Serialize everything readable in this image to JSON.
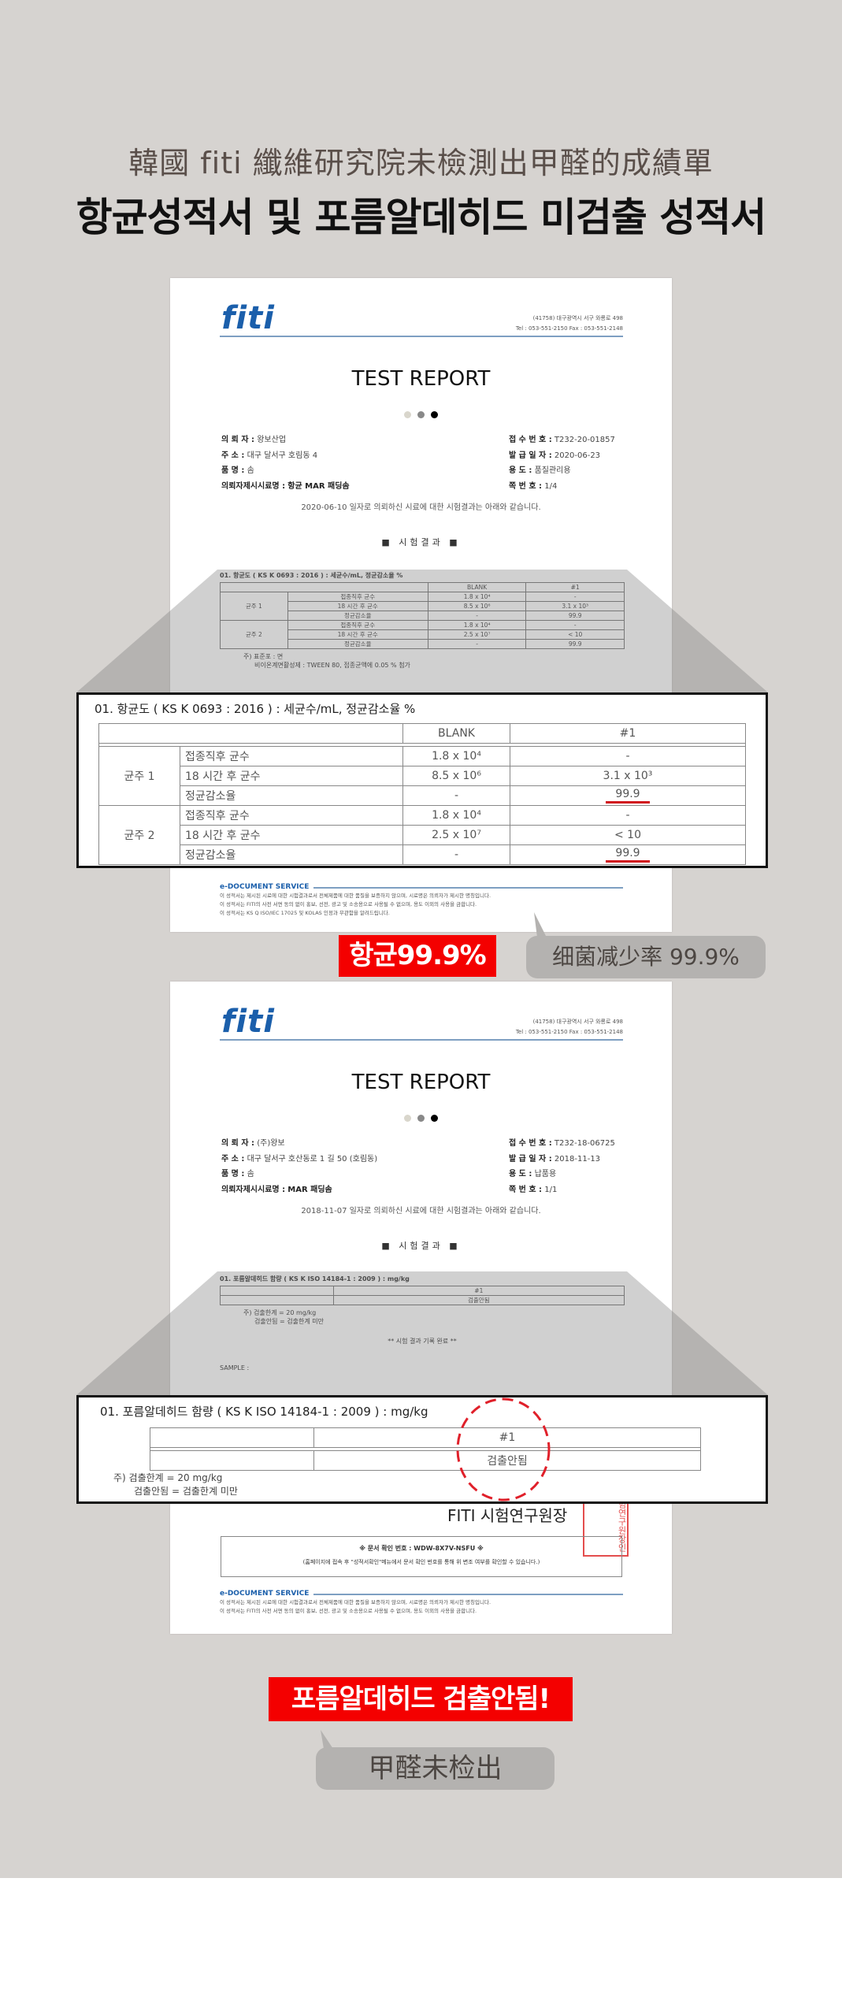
{
  "header": {
    "title_cn": "韓國 fiti 纖維研究院未檢測出甲醛的成績單",
    "title_kr": "항균성적서 및 포름알데히드 미검출 성적서"
  },
  "colors": {
    "accent_red": "#f40000",
    "logo_blue": "#1b5fab",
    "background": "#d6d3d0"
  },
  "report1": {
    "logo": "fiti",
    "address": "(41758) 대구광역시 서구 와룡로 498",
    "contact": "Tel : 053-551-2150   Fax : 053-551-2148",
    "title": "TEST REPORT",
    "left": [
      {
        "label": "의 뢰 자 :",
        "value": "왕보산업"
      },
      {
        "label": "주      소 :",
        "value": "대구 달서구 호림동 4"
      },
      {
        "label": "품      명 :",
        "value": "솜"
      },
      {
        "label": "의뢰자제시시료명 :",
        "value": "항균 MAR 패딩솜"
      }
    ],
    "right": [
      {
        "label": "접 수 번 호 :",
        "value": "T232-20-01857"
      },
      {
        "label": "발 급 일 자 :",
        "value": "2020-06-23"
      },
      {
        "label": "용        도 :",
        "value": "품질관리용"
      },
      {
        "label": "쪽   번   호 :",
        "value": "1/4"
      }
    ],
    "statement": "2020-06-10 일자로 의뢰하신 시료에 대한 시험결과는 아래와 같습니다.",
    "section": "■ 시험결과 ■",
    "table_heading": "01. 항균도 ( KS K 0693 : 2016 ) : 세균수/mL, 정균감소율  %",
    "columns": [
      "",
      "BLANK",
      "#1"
    ],
    "groups": [
      {
        "name": "균주 1",
        "rows": [
          {
            "label": "접종직후 균수",
            "blank": "1.8 x 10⁴",
            "s1": "-"
          },
          {
            "label": "18 시간 후 균수",
            "blank": "8.5 x 10⁶",
            "s1": "3.1 x 10³"
          },
          {
            "label": "정균감소율",
            "blank": "-",
            "s1": "99.9"
          }
        ]
      },
      {
        "name": "균주 2",
        "rows": [
          {
            "label": "접종직후 균수",
            "blank": "1.8 x 10⁴",
            "s1": "-"
          },
          {
            "label": "18 시간 후 균수",
            "blank": "2.5 x 10⁷",
            "s1": "< 10"
          },
          {
            "label": "정균감소율",
            "blank": "-",
            "s1": "99.9"
          }
        ]
      }
    ],
    "notes": [
      "주) 표준포 : 면",
      "비이온계면활성제 : TWEEN 80, 접종균액에 0.05 % 첨가"
    ],
    "edoc_title": "e-DOCUMENT SERVICE",
    "edoc_lines": [
      "이 성적서는 제시된 시료에 대한 시험결과로서 전체제품에 대한 품질을 보증하지 않으며, 시료명은 의뢰자가 제시한 명칭입니다.",
      "이 성적서는 FITI의 사전 서면 동의 없이 홍보, 선전, 광고 및 소송용으로 사용될 수 없으며, 용도 이외의 사용을 금합니다.",
      "이 성적서는 KS Q ISO/IEC 17025 및 KOLAS 인정과 무관함을 알려드립니다."
    ]
  },
  "callout1": {
    "badge": "항균99.9%",
    "pill": "细菌减少率 99.9%"
  },
  "report2": {
    "logo": "fiti",
    "address": "(41758) 대구광역시 서구 와룡로 498",
    "contact": "Tel : 053-551-2150   Fax : 053-551-2148",
    "title": "TEST REPORT",
    "left": [
      {
        "label": "의 뢰 자 :",
        "value": "(주)왕보"
      },
      {
        "label": "주      소 :",
        "value": "대구 달서구 호산동로 1 길 50 (호림동)"
      },
      {
        "label": "품      명 :",
        "value": "솜"
      },
      {
        "label": "의뢰자제시시료명 :",
        "value": "MAR 패딩솜"
      }
    ],
    "right": [
      {
        "label": "접 수 번 호 :",
        "value": "T232-18-06725"
      },
      {
        "label": "발 급 일 자 :",
        "value": "2018-11-13"
      },
      {
        "label": "용        도 :",
        "value": "납품용"
      },
      {
        "label": "쪽   번   호 :",
        "value": "1/1"
      }
    ],
    "statement": "2018-11-07 일자로 의뢰하신 시료에 대한 시험결과는 아래와 같습니다.",
    "section": "■ 시험결과 ■",
    "table_heading": "01. 포름알데히드 함량 ( KS K ISO 14184-1 : 2009 ) : mg/kg",
    "column": "#1",
    "result": "검출안됨",
    "notes": [
      "주) 검출한계 = 20 mg/kg",
      "검출안됨 = 검출한계 미만"
    ],
    "end_text": "** 시험 결과 기록 완료 **",
    "sample_label": "SAMPLE :",
    "signature": "FITI 시험연구원장",
    "stamp": "시험연구원장인",
    "verify_code": "※ 문서 확인 번호 : WDW-8X7V-NSFU ※",
    "verify_note": "(홈페이지에 접속 후 \"성적서확인\"메뉴에서 문서 확인 번호를 통해 위 변조 여부를 확인할 수 있습니다.)",
    "edoc_title": "e-DOCUMENT SERVICE",
    "edoc_lines": [
      "이 성적서는 제시된 시료에 대한 시험결과로서 전체제품에 대한 품질을 보증하지 않으며, 시료명은 의뢰자가 제시한 명칭입니다.",
      "이 성적서는 FITI의 사전 서면 동의 없이 홍보, 선전, 광고 및 소송용으로 사용될 수 없으며, 용도 이외의 사용을 금합니다."
    ]
  },
  "callout2": {
    "badge": "포름알데히드 검출안됨!",
    "pill": "甲醛未检出"
  }
}
